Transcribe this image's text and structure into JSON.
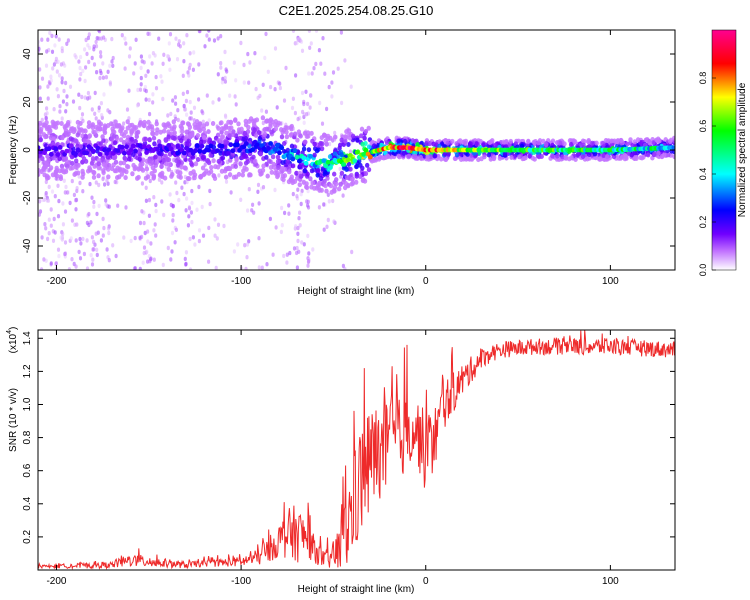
{
  "chart_data": [
    {
      "type": "heatmap",
      "title": "C2E1.2025.254.08.25.G10",
      "xlabel": "Height of straight line (km)",
      "ylabel": "Frequency (Hz)",
      "xlim": [
        -210,
        135
      ],
      "ylim": [
        -50,
        50
      ],
      "xticks": [
        -200,
        -100,
        0,
        100
      ],
      "yticks": [
        -40,
        -20,
        0,
        20,
        40
      ],
      "colorbar": {
        "label": "Normalized spectral amplitude",
        "range": [
          0,
          1
        ],
        "ticks": [
          0.0,
          0.2,
          0.4,
          0.6,
          0.8
        ],
        "colors": [
          "#ffffff",
          "#c070ff",
          "#7000ff",
          "#0000ff",
          "#00ffff",
          "#00ff00",
          "#ffff00",
          "#ff0000",
          "#ff0090"
        ]
      },
      "ridge": {
        "x": [
          -210,
          -150,
          -110,
          -90,
          -80,
          -60,
          -50,
          -40,
          -30,
          -20,
          -10,
          0,
          20,
          50,
          100,
          135
        ],
        "freq": [
          0,
          0,
          0,
          2,
          0,
          -5,
          -6,
          -3,
          -1,
          1,
          1,
          0,
          0,
          0,
          0,
          1
        ],
        "amp": [
          0.3,
          0.3,
          0.35,
          0.4,
          0.45,
          0.55,
          0.6,
          0.7,
          0.75,
          0.85,
          0.95,
          0.9,
          0.7,
          0.65,
          0.6,
          0.55
        ]
      }
    },
    {
      "type": "line",
      "xlabel": "Height of straight line (km)",
      "ylabel": "SNR (10 * v/v)",
      "yscale_label": "(x10",
      "yscale_exp": "4",
      "xlim": [
        -210,
        135
      ],
      "ylim": [
        0,
        1.45
      ],
      "xticks": [
        -200,
        -100,
        0,
        100
      ],
      "yticks": [
        0.2,
        0.4,
        0.6,
        0.8,
        1.0,
        1.2,
        1.4
      ],
      "series": [
        {
          "name": "SNR",
          "color": "#ee2a2a",
          "x": [
            -210,
            -170,
            -160,
            -130,
            -120,
            -100,
            -90,
            -80,
            -75,
            -70,
            -65,
            -60,
            -55,
            -50,
            -45,
            -40,
            -35,
            -30,
            -25,
            -20,
            -15,
            -10,
            -5,
            0,
            5,
            10,
            20,
            30,
            40,
            60,
            100,
            135
          ],
          "y": [
            0.02,
            0.03,
            0.06,
            0.03,
            0.04,
            0.05,
            0.08,
            0.17,
            0.22,
            0.22,
            0.2,
            0.12,
            0.06,
            0.08,
            0.15,
            0.35,
            0.55,
            0.65,
            0.7,
            0.75,
            0.78,
            0.85,
            0.85,
            0.7,
            0.8,
            1.0,
            1.15,
            1.28,
            1.33,
            1.35,
            1.35,
            1.33
          ],
          "noise": [
            0.01,
            0.02,
            0.04,
            0.02,
            0.02,
            0.03,
            0.05,
            0.1,
            0.15,
            0.18,
            0.12,
            0.08,
            0.05,
            0.08,
            0.2,
            0.3,
            0.35,
            0.35,
            0.3,
            0.28,
            0.25,
            0.25,
            0.2,
            0.25,
            0.2,
            0.15,
            0.1,
            0.06,
            0.05,
            0.05,
            0.05,
            0.05
          ]
        }
      ]
    }
  ]
}
